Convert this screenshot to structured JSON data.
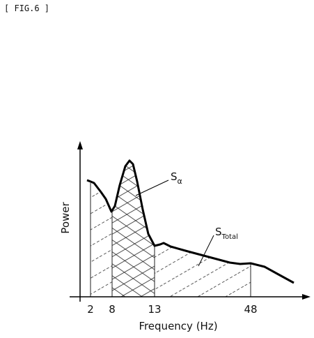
{
  "figure_label": "[ FIG.6 ]",
  "axes": {
    "y_label": "Power",
    "x_label": "Frequency (Hz)",
    "x_ticks": [
      "2",
      "8",
      "13",
      "48"
    ]
  },
  "annotations": {
    "s_alpha": {
      "base": "S",
      "sub": "α"
    },
    "s_total": {
      "base": "S",
      "sub": "Total"
    }
  }
}
